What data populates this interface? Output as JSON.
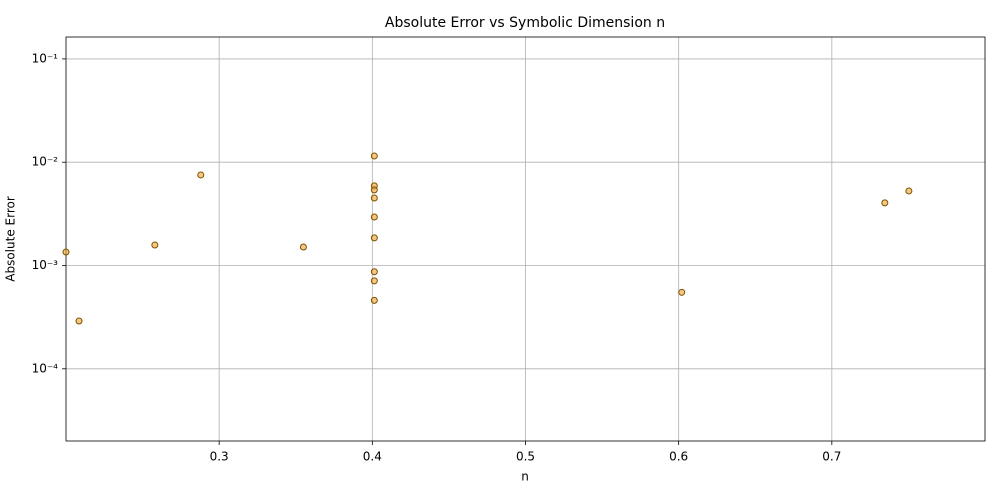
{
  "chart_data": {
    "type": "scatter",
    "title": "Absolute Error vs Symbolic Dimension n",
    "xlabel": "n",
    "ylabel": "Absolute Error",
    "x": [
      0.2,
      0.2085,
      0.258,
      0.288,
      0.355,
      0.4013,
      0.4013,
      0.4013,
      0.4013,
      0.4013,
      0.4013,
      0.4013,
      0.4013,
      0.4013,
      0.602,
      0.7346,
      0.7503
    ],
    "values": [
      0.00135,
      0.00029,
      0.00158,
      0.00753,
      0.00151,
      0.0115,
      0.0059,
      0.0054,
      0.0045,
      0.00295,
      0.00185,
      0.00087,
      0.00071,
      0.00046,
      0.00055,
      0.00404,
      0.00527
    ],
    "color": "#f0a030",
    "edgecolor": "#7a5200",
    "xlim": [
      0.2,
      0.8
    ],
    "xticks": [
      0.3,
      0.4,
      0.5,
      0.6,
      0.7
    ],
    "ylim": [
      2e-05,
      0.163
    ],
    "ylog": true,
    "yticks": [
      {
        "value": 0.1,
        "label": "10⁻¹"
      },
      {
        "value": 0.01,
        "label": "10⁻²"
      },
      {
        "value": 0.001,
        "label": "10⁻³"
      },
      {
        "value": 0.0001,
        "label": "10⁻⁴"
      }
    ],
    "grid": true
  }
}
